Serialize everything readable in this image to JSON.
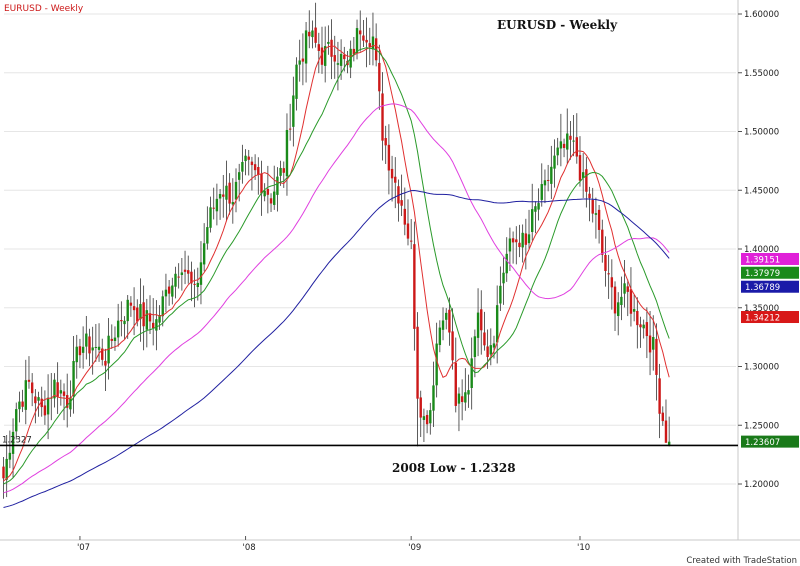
{
  "chart_data": {
    "type": "candlestick",
    "symbol_label": "EURUSD - Weekly",
    "title": "EURUSD - Weekly",
    "source_text": "Created with TradeStation",
    "ylim": [
      1.17,
      1.605
    ],
    "y_ticks": [
      {
        "value": 1.2,
        "label": "1.20000"
      },
      {
        "value": 1.25,
        "label": "1.25000"
      },
      {
        "value": 1.3,
        "label": "1.30000"
      },
      {
        "value": 1.35,
        "label": "1.35000"
      },
      {
        "value": 1.4,
        "label": "1.40000"
      },
      {
        "value": 1.45,
        "label": "1.45000"
      },
      {
        "value": 1.5,
        "label": "1.50000"
      },
      {
        "value": 1.55,
        "label": "1.55000"
      },
      {
        "value": 1.6,
        "label": "1.60000"
      }
    ],
    "x_ticks": [
      {
        "label": "'07",
        "bar": 24
      },
      {
        "label": "'08",
        "bar": 76
      },
      {
        "label": "'09",
        "bar": 128
      },
      {
        "label": "'10",
        "bar": 181
      }
    ],
    "bar_count": 218,
    "support_line": {
      "value": 1.2328,
      "label": "2008 Low - 1.2328"
    },
    "left_marker": {
      "value": 1.2327,
      "label": "1.2327"
    },
    "price_tags": [
      {
        "value": 1.39151,
        "label": "1.39151",
        "color": "#e020d8"
      },
      {
        "value": 1.37979,
        "label": "1.37979",
        "color": "#1a8a1a"
      },
      {
        "value": 1.36789,
        "label": "1.36789",
        "color": "#1a1aa8"
      },
      {
        "value": 1.34212,
        "label": "1.34212",
        "color": "#d81818"
      },
      {
        "value": 1.23607,
        "label": "1.23607",
        "color": "#1a7a1a"
      }
    ],
    "close_anchors": [
      [
        0,
        1.205
      ],
      [
        4,
        1.265
      ],
      [
        8,
        1.285
      ],
      [
        12,
        1.262
      ],
      [
        16,
        1.285
      ],
      [
        20,
        1.272
      ],
      [
        24,
        1.318
      ],
      [
        28,
        1.318
      ],
      [
        32,
        1.308
      ],
      [
        36,
        1.338
      ],
      [
        40,
        1.355
      ],
      [
        44,
        1.34
      ],
      [
        48,
        1.338
      ],
      [
        52,
        1.37
      ],
      [
        56,
        1.39
      ],
      [
        60,
        1.36
      ],
      [
        64,
        1.42
      ],
      [
        68,
        1.452
      ],
      [
        72,
        1.445
      ],
      [
        76,
        1.47
      ],
      [
        80,
        1.462
      ],
      [
        84,
        1.445
      ],
      [
        88,
        1.47
      ],
      [
        92,
        1.555
      ],
      [
        96,
        1.582
      ],
      [
        100,
        1.565
      ],
      [
        104,
        1.57
      ],
      [
        108,
        1.553
      ],
      [
        112,
        1.59
      ],
      [
        116,
        1.58
      ],
      [
        119,
        1.5
      ],
      [
        122,
        1.465
      ],
      [
        125,
        1.44
      ],
      [
        128,
        1.4
      ],
      [
        130,
        1.28
      ],
      [
        132,
        1.255
      ],
      [
        134,
        1.265
      ],
      [
        136,
        1.32
      ],
      [
        138,
        1.35
      ],
      [
        140,
        1.33
      ],
      [
        142,
        1.27
      ],
      [
        144,
        1.265
      ],
      [
        146,
        1.285
      ],
      [
        148,
        1.335
      ],
      [
        150,
        1.34
      ],
      [
        152,
        1.315
      ],
      [
        154,
        1.33
      ],
      [
        156,
        1.37
      ],
      [
        158,
        1.395
      ],
      [
        160,
        1.405
      ],
      [
        162,
        1.41
      ],
      [
        164,
        1.4
      ],
      [
        166,
        1.425
      ],
      [
        168,
        1.44
      ],
      [
        170,
        1.45
      ],
      [
        172,
        1.47
      ],
      [
        174,
        1.48
      ],
      [
        176,
        1.485
      ],
      [
        178,
        1.49
      ],
      [
        180,
        1.48
      ],
      [
        182,
        1.455
      ],
      [
        184,
        1.44
      ],
      [
        186,
        1.425
      ],
      [
        188,
        1.395
      ],
      [
        190,
        1.37
      ],
      [
        192,
        1.355
      ],
      [
        194,
        1.36
      ],
      [
        196,
        1.36
      ],
      [
        198,
        1.345
      ],
      [
        200,
        1.34
      ],
      [
        202,
        1.33
      ],
      [
        204,
        1.315
      ],
      [
        206,
        1.27
      ],
      [
        208,
        1.242
      ],
      [
        209,
        1.236
      ]
    ],
    "series": [
      {
        "kind": "sma",
        "period": 10,
        "color": "#e03030"
      },
      {
        "kind": "sma",
        "period": 20,
        "color": "#2a9a2a"
      },
      {
        "kind": "sma",
        "period": 50,
        "color": "#e040e0"
      },
      {
        "kind": "sma",
        "period": 100,
        "color": "#2020a0"
      }
    ],
    "colors": {
      "up": "#1a8a1a",
      "down": "#cc1818",
      "wick": "#333333",
      "support": "#000000"
    }
  }
}
